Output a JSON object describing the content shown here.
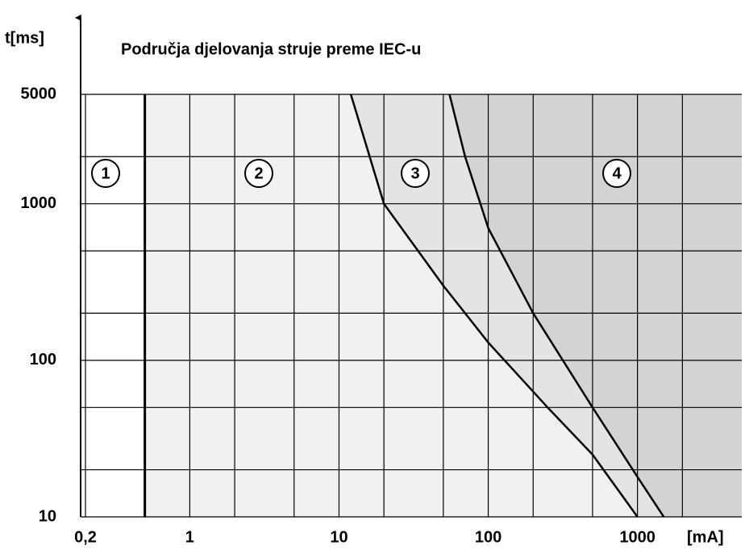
{
  "chart_data": {
    "type": "line",
    "title": "Područja djelovanja struje preme IEC-u",
    "ylabel": "t[ms]",
    "xlabel": "[mA]",
    "xscale": "log",
    "yscale": "log",
    "xlim": [
      0.2,
      5000
    ],
    "ylim": [
      10,
      5000
    ],
    "xticks": [
      {
        "value": 0.2,
        "label": "0,2"
      },
      1,
      10,
      100,
      1000
    ],
    "yticks": [
      10,
      100,
      1000,
      5000
    ],
    "minor_xticks": [
      0.5,
      2,
      5,
      20,
      50,
      200,
      500,
      2000
    ],
    "minor_yticks": [
      20,
      50,
      200,
      500,
      2000
    ],
    "grid": true,
    "color": "#000000",
    "zone_boundary": 0.5,
    "zones": [
      "1",
      "2",
      "3",
      "4"
    ],
    "curves": [
      {
        "x": [
          12,
          20,
          50,
          100,
          250,
          500,
          1000
        ],
        "y": [
          5000,
          1000,
          300,
          130,
          50,
          25,
          10
        ]
      },
      {
        "x": [
          55,
          70,
          100,
          200,
          500,
          1000,
          1500
        ],
        "y": [
          5000,
          2000,
          700,
          200,
          50,
          18,
          10
        ]
      }
    ]
  }
}
